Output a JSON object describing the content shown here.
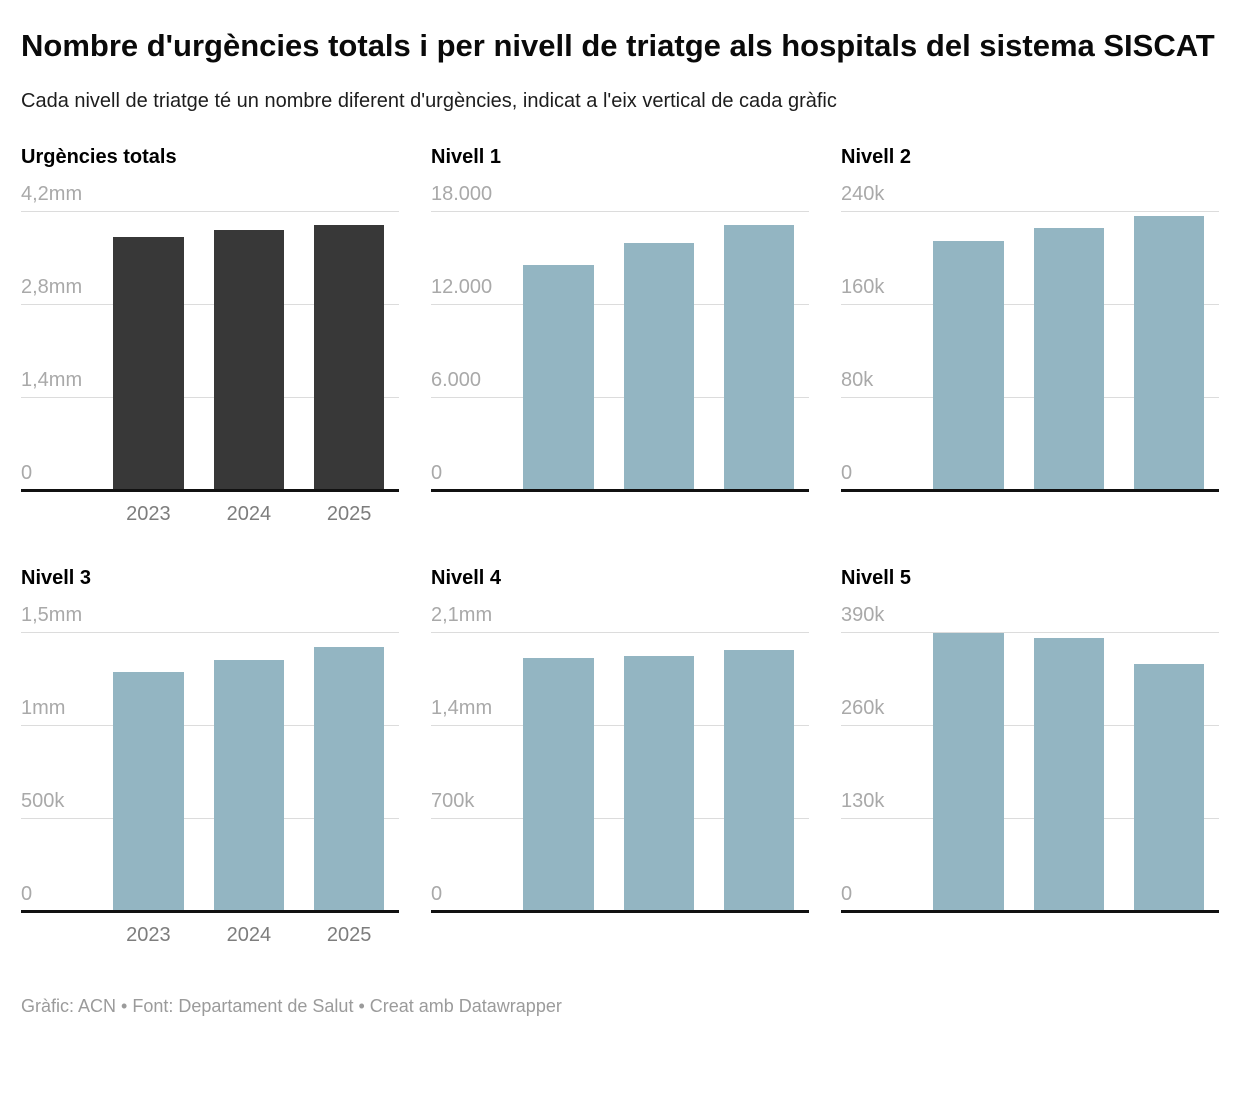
{
  "header": {
    "title": "Nombre d'urgències totals i per nivell de triatge als hospitals del sistema SISCAT",
    "subtitle": "Cada nivell de triatge té un nombre diferent d'urgències, indicat a l'eix vertical de cada gràfic"
  },
  "footer": {
    "attribution": "Gràfic: ACN • Font: Departament de Salut • Creat amb Datawrapper"
  },
  "colors": {
    "total_bar": "#383838",
    "level_bar": "#93b5c2",
    "gridline": "#dcdcdc",
    "baseline": "#111111",
    "tick_text": "#a9a9a9",
    "year_text": "#7d7d7d"
  },
  "chart_data": [
    {
      "type": "bar",
      "title": "Urgències totals",
      "categories": [
        "2023",
        "2024",
        "2025"
      ],
      "values": [
        3770000,
        3870000,
        3950000
      ],
      "ylim": [
        0,
        4200000
      ],
      "yticks": [
        "0",
        "1,4mm",
        "2,8mm",
        "4,2mm"
      ],
      "bar_color": "#383838",
      "show_x_labels": true,
      "grid": true,
      "legend": "none"
    },
    {
      "type": "bar",
      "title": "Nivell 1",
      "categories": [
        "2023",
        "2024",
        "2025"
      ],
      "values": [
        14350,
        15750,
        16900
      ],
      "ylim": [
        0,
        18000
      ],
      "yticks": [
        "0",
        "6.000",
        "12.000",
        "18.000"
      ],
      "bar_color": "#93b5c2",
      "show_x_labels": false,
      "grid": true,
      "legend": "none"
    },
    {
      "type": "bar",
      "title": "Nivell 2",
      "categories": [
        "2023",
        "2024",
        "2025"
      ],
      "values": [
        212000,
        223000,
        233000
      ],
      "ylim": [
        0,
        240000
      ],
      "yticks": [
        "0",
        "80k",
        "160k",
        "240k"
      ],
      "bar_color": "#93b5c2",
      "show_x_labels": false,
      "grid": true,
      "legend": "none"
    },
    {
      "type": "bar",
      "title": "Nivell 3",
      "categories": [
        "2023",
        "2024",
        "2025"
      ],
      "values": [
        1270000,
        1333000,
        1403000
      ],
      "ylim": [
        0,
        1500000
      ],
      "yticks": [
        "0",
        "500k",
        "1mm",
        "1,5mm"
      ],
      "bar_color": "#93b5c2",
      "show_x_labels": true,
      "grid": true,
      "legend": "none"
    },
    {
      "type": "bar",
      "title": "Nivell 4",
      "categories": [
        "2023",
        "2024",
        "2025"
      ],
      "values": [
        1880000,
        1900000,
        1940000
      ],
      "ylim": [
        0,
        2100000
      ],
      "yticks": [
        "0",
        "700k",
        "1,4mm",
        "2,1mm"
      ],
      "bar_color": "#93b5c2",
      "show_x_labels": false,
      "grid": true,
      "legend": "none"
    },
    {
      "type": "bar",
      "title": "Nivell 5",
      "categories": [
        "2023",
        "2024",
        "2025"
      ],
      "values": [
        384000,
        378000,
        341000
      ],
      "ylim": [
        0,
        390000
      ],
      "yticks": [
        "0",
        "130k",
        "260k",
        "390k"
      ],
      "bar_color": "#93b5c2",
      "show_x_labels": false,
      "grid": true,
      "legend": "none"
    }
  ]
}
